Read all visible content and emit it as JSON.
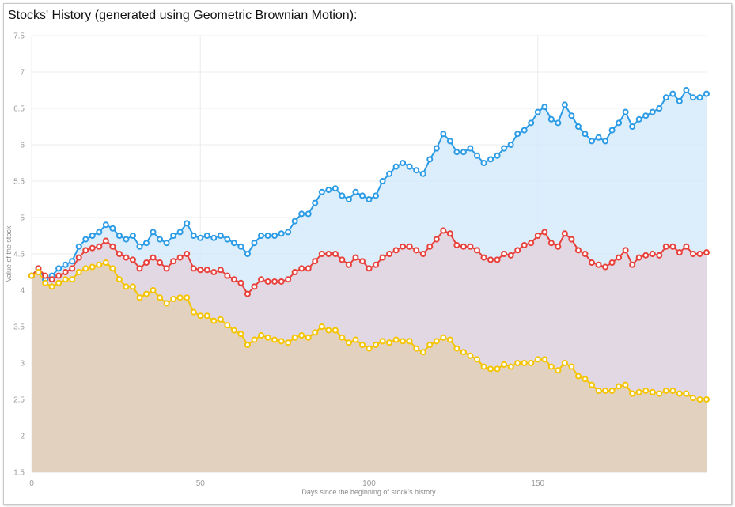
{
  "chart_data": {
    "type": "line",
    "title": "Stocks' History (generated using Geometric Brownian Motion):",
    "xlabel": "Days since the beginning of stock's history",
    "ylabel": "Value of the stock",
    "xlim": [
      0,
      200
    ],
    "ylim": [
      1.5,
      7.5
    ],
    "xticks": [
      0,
      50,
      100,
      150
    ],
    "yticks": [
      1.5,
      2,
      2.5,
      3,
      3.5,
      4,
      4.5,
      5,
      5.5,
      6,
      6.5,
      7,
      7.5
    ],
    "grid": true,
    "legend": "none",
    "series": [
      {
        "color": "#2b9be6",
        "fill": "#d6eafb",
        "points": [
          [
            0,
            4.2
          ],
          [
            2,
            4.3
          ],
          [
            4,
            4.15
          ],
          [
            6,
            4.2
          ],
          [
            8,
            4.3
          ],
          [
            10,
            4.35
          ],
          [
            12,
            4.4
          ],
          [
            14,
            4.6
          ],
          [
            16,
            4.7
          ],
          [
            18,
            4.75
          ],
          [
            20,
            4.8
          ],
          [
            22,
            4.9
          ],
          [
            24,
            4.85
          ],
          [
            26,
            4.75
          ],
          [
            28,
            4.7
          ],
          [
            30,
            4.75
          ],
          [
            32,
            4.6
          ],
          [
            34,
            4.65
          ],
          [
            36,
            4.8
          ],
          [
            38,
            4.7
          ],
          [
            40,
            4.65
          ],
          [
            42,
            4.75
          ],
          [
            44,
            4.8
          ],
          [
            46,
            4.92
          ],
          [
            48,
            4.75
          ],
          [
            50,
            4.72
          ],
          [
            52,
            4.75
          ],
          [
            54,
            4.72
          ],
          [
            56,
            4.75
          ],
          [
            58,
            4.7
          ],
          [
            60,
            4.65
          ],
          [
            62,
            4.6
          ],
          [
            64,
            4.5
          ],
          [
            66,
            4.65
          ],
          [
            68,
            4.75
          ],
          [
            70,
            4.75
          ],
          [
            72,
            4.75
          ],
          [
            74,
            4.78
          ],
          [
            76,
            4.8
          ],
          [
            78,
            4.95
          ],
          [
            80,
            5.05
          ],
          [
            82,
            5.05
          ],
          [
            84,
            5.2
          ],
          [
            86,
            5.35
          ],
          [
            88,
            5.38
          ],
          [
            90,
            5.4
          ],
          [
            92,
            5.3
          ],
          [
            94,
            5.25
          ],
          [
            96,
            5.35
          ],
          [
            98,
            5.3
          ],
          [
            100,
            5.25
          ],
          [
            102,
            5.3
          ],
          [
            104,
            5.5
          ],
          [
            106,
            5.6
          ],
          [
            108,
            5.7
          ],
          [
            110,
            5.75
          ],
          [
            112,
            5.7
          ],
          [
            114,
            5.65
          ],
          [
            116,
            5.6
          ],
          [
            118,
            5.8
          ],
          [
            120,
            5.95
          ],
          [
            122,
            6.15
          ],
          [
            124,
            6.05
          ],
          [
            126,
            5.9
          ],
          [
            128,
            5.9
          ],
          [
            130,
            5.95
          ],
          [
            132,
            5.85
          ],
          [
            134,
            5.75
          ],
          [
            136,
            5.8
          ],
          [
            138,
            5.85
          ],
          [
            140,
            5.95
          ],
          [
            142,
            6.0
          ],
          [
            144,
            6.15
          ],
          [
            146,
            6.2
          ],
          [
            148,
            6.3
          ],
          [
            150,
            6.45
          ],
          [
            152,
            6.52
          ],
          [
            154,
            6.35
          ],
          [
            156,
            6.3
          ],
          [
            158,
            6.55
          ],
          [
            160,
            6.4
          ],
          [
            162,
            6.25
          ],
          [
            164,
            6.15
          ],
          [
            166,
            6.05
          ],
          [
            168,
            6.1
          ],
          [
            170,
            6.05
          ],
          [
            172,
            6.2
          ],
          [
            174,
            6.3
          ],
          [
            176,
            6.45
          ],
          [
            178,
            6.25
          ],
          [
            180,
            6.35
          ],
          [
            182,
            6.4
          ],
          [
            184,
            6.45
          ],
          [
            186,
            6.5
          ],
          [
            188,
            6.65
          ],
          [
            190,
            6.7
          ],
          [
            192,
            6.6
          ],
          [
            194,
            6.75
          ],
          [
            196,
            6.65
          ],
          [
            198,
            6.65
          ],
          [
            200,
            6.7
          ]
        ]
      },
      {
        "color": "#e8403a",
        "fill": "#e3d4de",
        "points": [
          [
            0,
            4.2
          ],
          [
            2,
            4.3
          ],
          [
            4,
            4.2
          ],
          [
            6,
            4.15
          ],
          [
            8,
            4.2
          ],
          [
            10,
            4.25
          ],
          [
            12,
            4.3
          ],
          [
            14,
            4.45
          ],
          [
            16,
            4.55
          ],
          [
            18,
            4.58
          ],
          [
            20,
            4.6
          ],
          [
            22,
            4.68
          ],
          [
            24,
            4.6
          ],
          [
            26,
            4.5
          ],
          [
            28,
            4.45
          ],
          [
            30,
            4.42
          ],
          [
            32,
            4.3
          ],
          [
            34,
            4.38
          ],
          [
            36,
            4.45
          ],
          [
            38,
            4.38
          ],
          [
            40,
            4.3
          ],
          [
            42,
            4.4
          ],
          [
            44,
            4.45
          ],
          [
            46,
            4.5
          ],
          [
            48,
            4.3
          ],
          [
            50,
            4.28
          ],
          [
            52,
            4.28
          ],
          [
            54,
            4.25
          ],
          [
            56,
            4.28
          ],
          [
            58,
            4.2
          ],
          [
            60,
            4.15
          ],
          [
            62,
            4.1
          ],
          [
            64,
            3.95
          ],
          [
            66,
            4.05
          ],
          [
            68,
            4.15
          ],
          [
            70,
            4.12
          ],
          [
            72,
            4.12
          ],
          [
            74,
            4.12
          ],
          [
            76,
            4.15
          ],
          [
            78,
            4.25
          ],
          [
            80,
            4.3
          ],
          [
            82,
            4.3
          ],
          [
            84,
            4.4
          ],
          [
            86,
            4.5
          ],
          [
            88,
            4.5
          ],
          [
            90,
            4.5
          ],
          [
            92,
            4.42
          ],
          [
            94,
            4.35
          ],
          [
            96,
            4.45
          ],
          [
            98,
            4.4
          ],
          [
            100,
            4.3
          ],
          [
            102,
            4.35
          ],
          [
            104,
            4.45
          ],
          [
            106,
            4.5
          ],
          [
            108,
            4.55
          ],
          [
            110,
            4.6
          ],
          [
            112,
            4.6
          ],
          [
            114,
            4.55
          ],
          [
            116,
            4.5
          ],
          [
            118,
            4.6
          ],
          [
            120,
            4.7
          ],
          [
            122,
            4.82
          ],
          [
            124,
            4.78
          ],
          [
            126,
            4.62
          ],
          [
            128,
            4.6
          ],
          [
            130,
            4.6
          ],
          [
            132,
            4.55
          ],
          [
            134,
            4.45
          ],
          [
            136,
            4.42
          ],
          [
            138,
            4.42
          ],
          [
            140,
            4.5
          ],
          [
            142,
            4.48
          ],
          [
            144,
            4.55
          ],
          [
            146,
            4.62
          ],
          [
            148,
            4.65
          ],
          [
            150,
            4.75
          ],
          [
            152,
            4.8
          ],
          [
            154,
            4.65
          ],
          [
            156,
            4.6
          ],
          [
            158,
            4.78
          ],
          [
            160,
            4.7
          ],
          [
            162,
            4.55
          ],
          [
            164,
            4.5
          ],
          [
            166,
            4.38
          ],
          [
            168,
            4.35
          ],
          [
            170,
            4.32
          ],
          [
            172,
            4.38
          ],
          [
            174,
            4.45
          ],
          [
            176,
            4.55
          ],
          [
            178,
            4.35
          ],
          [
            180,
            4.45
          ],
          [
            182,
            4.48
          ],
          [
            184,
            4.5
          ],
          [
            186,
            4.48
          ],
          [
            188,
            4.6
          ],
          [
            190,
            4.6
          ],
          [
            192,
            4.52
          ],
          [
            194,
            4.6
          ],
          [
            196,
            4.5
          ],
          [
            198,
            4.5
          ],
          [
            200,
            4.52
          ]
        ]
      },
      {
        "color": "#f5c400",
        "fill": "#e2d0b8",
        "points": [
          [
            0,
            4.2
          ],
          [
            2,
            4.25
          ],
          [
            4,
            4.1
          ],
          [
            6,
            4.05
          ],
          [
            8,
            4.1
          ],
          [
            10,
            4.15
          ],
          [
            12,
            4.15
          ],
          [
            14,
            4.25
          ],
          [
            16,
            4.3
          ],
          [
            18,
            4.32
          ],
          [
            20,
            4.35
          ],
          [
            22,
            4.38
          ],
          [
            24,
            4.3
          ],
          [
            26,
            4.15
          ],
          [
            28,
            4.05
          ],
          [
            30,
            4.05
          ],
          [
            32,
            3.9
          ],
          [
            34,
            3.95
          ],
          [
            36,
            4.0
          ],
          [
            38,
            3.9
          ],
          [
            40,
            3.82
          ],
          [
            42,
            3.88
          ],
          [
            44,
            3.9
          ],
          [
            46,
            3.9
          ],
          [
            48,
            3.7
          ],
          [
            50,
            3.65
          ],
          [
            52,
            3.65
          ],
          [
            54,
            3.58
          ],
          [
            56,
            3.6
          ],
          [
            58,
            3.52
          ],
          [
            60,
            3.45
          ],
          [
            62,
            3.4
          ],
          [
            64,
            3.25
          ],
          [
            66,
            3.32
          ],
          [
            68,
            3.38
          ],
          [
            70,
            3.35
          ],
          [
            72,
            3.32
          ],
          [
            74,
            3.3
          ],
          [
            76,
            3.28
          ],
          [
            78,
            3.35
          ],
          [
            80,
            3.38
          ],
          [
            82,
            3.35
          ],
          [
            84,
            3.42
          ],
          [
            86,
            3.5
          ],
          [
            88,
            3.45
          ],
          [
            90,
            3.45
          ],
          [
            92,
            3.35
          ],
          [
            94,
            3.28
          ],
          [
            96,
            3.32
          ],
          [
            98,
            3.25
          ],
          [
            100,
            3.2
          ],
          [
            102,
            3.25
          ],
          [
            104,
            3.3
          ],
          [
            106,
            3.28
          ],
          [
            108,
            3.32
          ],
          [
            110,
            3.3
          ],
          [
            112,
            3.3
          ],
          [
            114,
            3.2
          ],
          [
            116,
            3.15
          ],
          [
            118,
            3.25
          ],
          [
            120,
            3.3
          ],
          [
            122,
            3.35
          ],
          [
            124,
            3.32
          ],
          [
            126,
            3.2
          ],
          [
            128,
            3.15
          ],
          [
            130,
            3.1
          ],
          [
            132,
            3.05
          ],
          [
            134,
            2.95
          ],
          [
            136,
            2.92
          ],
          [
            138,
            2.92
          ],
          [
            140,
            2.98
          ],
          [
            142,
            2.95
          ],
          [
            144,
            3.0
          ],
          [
            146,
            3.0
          ],
          [
            148,
            3.0
          ],
          [
            150,
            3.05
          ],
          [
            152,
            3.05
          ],
          [
            154,
            2.95
          ],
          [
            156,
            2.9
          ],
          [
            158,
            3.0
          ],
          [
            160,
            2.95
          ],
          [
            162,
            2.82
          ],
          [
            164,
            2.78
          ],
          [
            166,
            2.7
          ],
          [
            168,
            2.62
          ],
          [
            170,
            2.62
          ],
          [
            172,
            2.62
          ],
          [
            174,
            2.68
          ],
          [
            176,
            2.7
          ],
          [
            178,
            2.58
          ],
          [
            180,
            2.6
          ],
          [
            182,
            2.62
          ],
          [
            184,
            2.6
          ],
          [
            186,
            2.58
          ],
          [
            188,
            2.62
          ],
          [
            190,
            2.62
          ],
          [
            192,
            2.58
          ],
          [
            194,
            2.58
          ],
          [
            196,
            2.52
          ],
          [
            198,
            2.5
          ],
          [
            200,
            2.5
          ]
        ]
      }
    ]
  }
}
